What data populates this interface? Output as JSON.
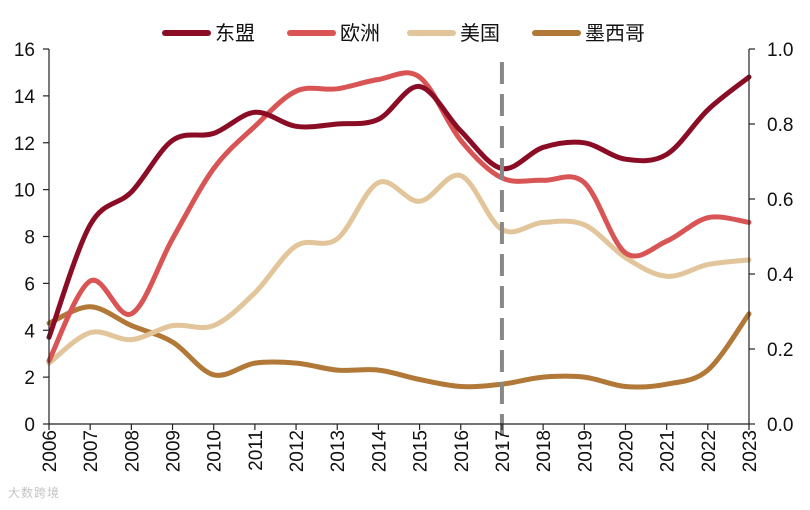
{
  "chart_data": {
    "type": "line",
    "title": "",
    "xlabel": "",
    "ylabel": "",
    "ylabel_right": "",
    "categories": [
      "2006",
      "2007",
      "2008",
      "2009",
      "2010",
      "2011",
      "2012",
      "2013",
      "2014",
      "2015",
      "2016",
      "2017",
      "2018",
      "2019",
      "2020",
      "2021",
      "2022",
      "2023"
    ],
    "ylim": [
      0,
      16
    ],
    "yticks": [
      0,
      2,
      4,
      6,
      8,
      10,
      12,
      14,
      16
    ],
    "ylim_right": [
      0.0,
      1.0
    ],
    "yticks_right": [
      "0.0",
      "0.2",
      "0.4",
      "0.6",
      "0.8",
      "1.0"
    ],
    "grid": false,
    "legend_position": "top",
    "series": [
      {
        "name": "东盟",
        "axis": "left",
        "color": "#8b0d25",
        "values": [
          3.7,
          8.5,
          9.9,
          12.1,
          12.4,
          13.3,
          12.7,
          12.8,
          13.0,
          14.4,
          12.5,
          10.9,
          11.8,
          12.0,
          11.3,
          11.5,
          13.4,
          14.8
        ]
      },
      {
        "name": "欧洲",
        "axis": "left",
        "color": "#d95555",
        "values": [
          2.7,
          6.1,
          4.7,
          7.9,
          10.9,
          12.7,
          14.2,
          14.3,
          14.7,
          14.8,
          12.1,
          10.5,
          10.4,
          10.3,
          7.3,
          7.8,
          8.8,
          8.6
        ]
      },
      {
        "name": "美国",
        "axis": "left",
        "color": "#e2c59a",
        "values": [
          2.6,
          3.9,
          3.6,
          4.2,
          4.2,
          5.6,
          7.6,
          7.9,
          10.3,
          9.5,
          10.6,
          8.3,
          8.6,
          8.5,
          7.1,
          6.3,
          6.8,
          7.0
        ]
      },
      {
        "name": "墨西哥",
        "axis": "left",
        "color": "#b27838",
        "values": [
          4.3,
          5.0,
          4.2,
          3.5,
          2.1,
          2.6,
          2.6,
          2.3,
          2.3,
          1.9,
          1.6,
          1.7,
          2.0,
          2.0,
          1.6,
          1.7,
          2.3,
          4.7
        ]
      }
    ],
    "annotations": [
      {
        "type": "vertical-dashed-line",
        "x": "2017",
        "color": "#888888"
      }
    ]
  },
  "watermark": "大数跨境"
}
